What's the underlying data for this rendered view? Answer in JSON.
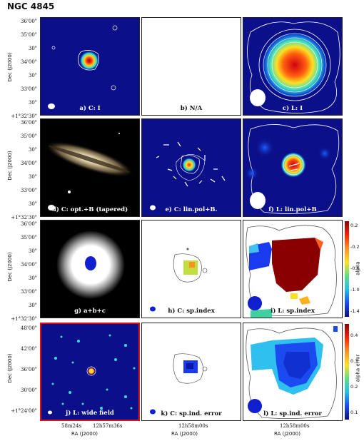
{
  "figure_title": "NGC 4845",
  "colors": {
    "map_bg": "#0b0f8a",
    "hot": "#c01010",
    "contour": "#ffffff",
    "frame_red": "#e01010"
  },
  "chart_data": {
    "type": "heatmap",
    "panels": [
      {
        "id": "a",
        "label": "a) C: I"
      },
      {
        "id": "b",
        "label": "b) N/A"
      },
      {
        "id": "c",
        "label": "c) L: I"
      },
      {
        "id": "d",
        "label": "d) C: opt.+B (tapered)"
      },
      {
        "id": "e",
        "label": "e) C: lin.pol+B."
      },
      {
        "id": "f",
        "label": "f) L: lin.pol+B"
      },
      {
        "id": "g",
        "label": "g)  a+b+c"
      },
      {
        "id": "h",
        "label": "h) C: sp.index"
      },
      {
        "id": "i",
        "label": "i) L: sp.index"
      },
      {
        "id": "j",
        "label": "j) L: wide field"
      },
      {
        "id": "k",
        "label": "k) C: sp.ind. error"
      },
      {
        "id": "l",
        "label": "l) L: sp.ind. error"
      }
    ],
    "y_axis": {
      "label": "Dec (J2000)",
      "rows_1_3_ticks": [
        "36'00\"",
        "35'00\"",
        "30\"",
        "34'00\"",
        "30\"",
        "33'00\"",
        "30\"",
        "+1°32'30\""
      ],
      "row_4_ticks": [
        "48'00\"",
        "42'00\"",
        "36'00\"",
        "30'00\"",
        "+1°24'00\""
      ]
    },
    "x_axis": {
      "label": "RA (J2000)",
      "col1_ticks": [
        "58m24s",
        "12h57m36s"
      ],
      "col2_ticks": [
        "12h58m00s"
      ],
      "col3_ticks": [
        "12h58m00s"
      ]
    },
    "colorbars": [
      {
        "label": "alpha",
        "ticks": [
          "0.2",
          "-0.2",
          "-0.6",
          "-1.0",
          "-1.4"
        ]
      },
      {
        "label": "alpha error",
        "ticks": [
          "0.4",
          "0.3",
          "0.2",
          "0.1"
        ]
      }
    ]
  }
}
